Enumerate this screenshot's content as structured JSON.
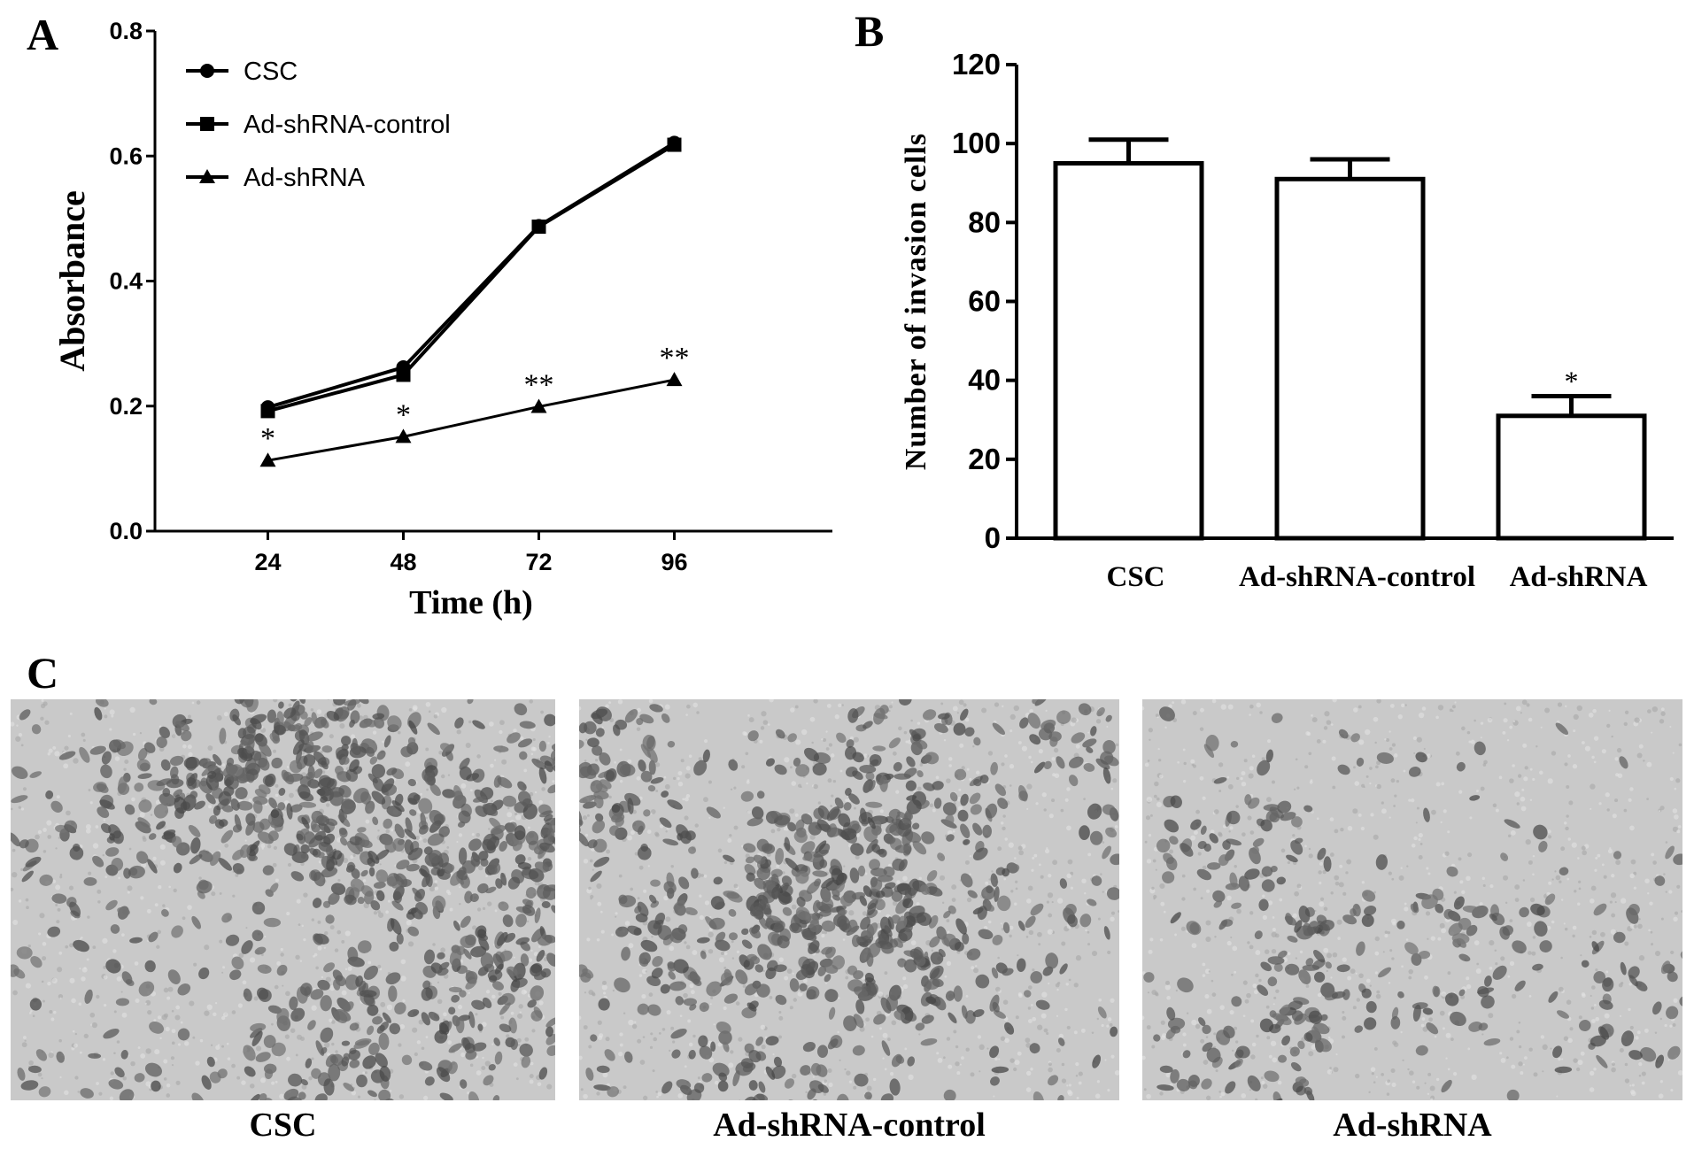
{
  "panels": {
    "a": "A",
    "b": "B",
    "c": "C"
  },
  "chart_data": [
    {
      "panel": "A",
      "type": "line",
      "xlabel": "Time (h)",
      "ylabel": "Absorbance",
      "x": [
        24,
        48,
        72,
        96
      ],
      "xticks": [
        "24",
        "48",
        "72",
        "96"
      ],
      "yticks": [
        "0.0",
        "0.2",
        "0.4",
        "0.6",
        "0.8"
      ],
      "ylim": [
        0,
        0.8
      ],
      "grid": false,
      "legend_position": "top-left",
      "series": [
        {
          "name": "CSC",
          "marker": "circle",
          "values": [
            0.198,
            0.262,
            0.488,
            0.621
          ]
        },
        {
          "name": "Ad-shRNA-control",
          "marker": "square",
          "values": [
            0.192,
            0.25,
            0.487,
            0.618
          ]
        },
        {
          "name": "Ad-shRNA",
          "marker": "triangle",
          "values": [
            0.113,
            0.151,
            0.199,
            0.242
          ]
        }
      ],
      "annotations": [
        "*",
        "*",
        "**",
        "**"
      ]
    },
    {
      "panel": "B",
      "type": "bar",
      "categories": [
        "CSC",
        "Ad-shRNA-control",
        "Ad-shRNA"
      ],
      "values": [
        95,
        91,
        31
      ],
      "errors": [
        6,
        5,
        5
      ],
      "ylabel": "Number of invasion cells",
      "xlabel": "",
      "yticks": [
        "0",
        "20",
        "40",
        "60",
        "80",
        "100",
        "120"
      ],
      "ylim": [
        0,
        120
      ],
      "grid": false,
      "annotations": [
        "",
        "",
        "*"
      ]
    }
  ],
  "micrographs": [
    {
      "caption": "CSC",
      "stain_density": 0.62
    },
    {
      "caption": "Ad-shRNA-control",
      "stain_density": 0.55
    },
    {
      "caption": "Ad-shRNA",
      "stain_density": 0.2
    }
  ],
  "colors": {
    "ink": "#000000",
    "background": "#ffffff",
    "micrograph_bg": "#c9c9c9",
    "stain": "#5e5e5e"
  }
}
